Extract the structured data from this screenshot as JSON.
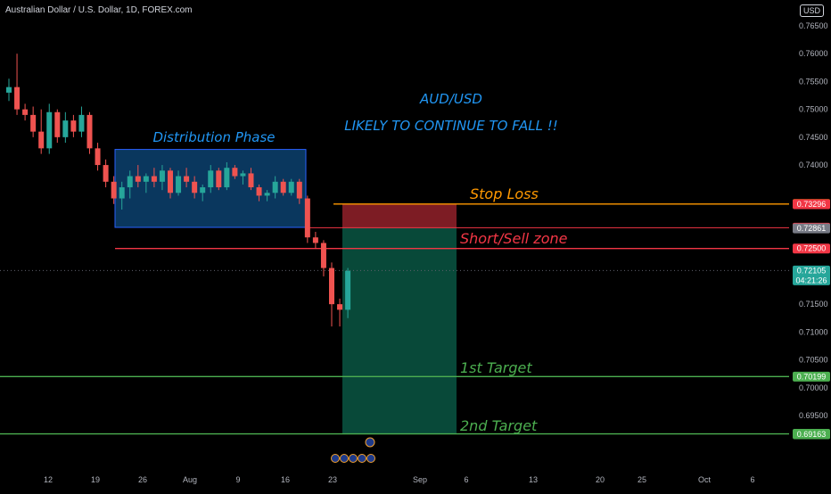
{
  "symbol": {
    "title": "Australian Dollar / U.S. Dollar, 1D, FOREX.com",
    "currency": "USD"
  },
  "colors": {
    "up": "#26a69a",
    "down": "#ef5350",
    "stop_line": "#ff9800",
    "sell_line": "#f23645",
    "target_line": "#4caf50",
    "headline": "#2196f3",
    "distribution_box": "#0d4a7e"
  },
  "annotations": {
    "headline_1": "AUD/USD",
    "headline_2": "LIKELY TO CONTINUE TO FALL !!",
    "distribution": "Distribution Phase",
    "stop_loss": "Stop Loss",
    "sell_zone": "Short/Sell zone",
    "target_1": "1st Target",
    "target_2": "2nd Target"
  },
  "chart_data": {
    "type": "candlestick",
    "title": "Australian Dollar / U.S. Dollar, 1D, FOREX.com",
    "ylim": [
      0.688,
      0.768
    ],
    "y_ticks": [
      0.765,
      0.76,
      0.755,
      0.75,
      0.745,
      0.74,
      0.715,
      0.71,
      0.705,
      0.7,
      0.695
    ],
    "x_ticks": [
      "12",
      "19",
      "26",
      "Aug",
      "9",
      "16",
      "23",
      "Sep",
      "6",
      "13",
      "20",
      "25",
      "Oct",
      "6"
    ],
    "grid": false,
    "candles": [
      {
        "o": 0.753,
        "h": 0.7555,
        "l": 0.7515,
        "c": 0.754
      },
      {
        "o": 0.754,
        "h": 0.76,
        "l": 0.749,
        "c": 0.75
      },
      {
        "o": 0.75,
        "h": 0.751,
        "l": 0.748,
        "c": 0.749
      },
      {
        "o": 0.749,
        "h": 0.7505,
        "l": 0.745,
        "c": 0.746
      },
      {
        "o": 0.746,
        "h": 0.75,
        "l": 0.742,
        "c": 0.743
      },
      {
        "o": 0.743,
        "h": 0.751,
        "l": 0.742,
        "c": 0.7495
      },
      {
        "o": 0.7495,
        "h": 0.75,
        "l": 0.744,
        "c": 0.745
      },
      {
        "o": 0.745,
        "h": 0.7495,
        "l": 0.744,
        "c": 0.748
      },
      {
        "o": 0.748,
        "h": 0.749,
        "l": 0.745,
        "c": 0.746
      },
      {
        "o": 0.746,
        "h": 0.7505,
        "l": 0.745,
        "c": 0.749
      },
      {
        "o": 0.749,
        "h": 0.7495,
        "l": 0.742,
        "c": 0.743
      },
      {
        "o": 0.743,
        "h": 0.744,
        "l": 0.739,
        "c": 0.74
      },
      {
        "o": 0.74,
        "h": 0.741,
        "l": 0.736,
        "c": 0.737
      },
      {
        "o": 0.737,
        "h": 0.738,
        "l": 0.733,
        "c": 0.734
      },
      {
        "o": 0.734,
        "h": 0.737,
        "l": 0.732,
        "c": 0.736
      },
      {
        "o": 0.736,
        "h": 0.739,
        "l": 0.734,
        "c": 0.738
      },
      {
        "o": 0.738,
        "h": 0.74,
        "l": 0.736,
        "c": 0.737
      },
      {
        "o": 0.737,
        "h": 0.7385,
        "l": 0.735,
        "c": 0.738
      },
      {
        "o": 0.738,
        "h": 0.7395,
        "l": 0.736,
        "c": 0.737
      },
      {
        "o": 0.737,
        "h": 0.74,
        "l": 0.7355,
        "c": 0.739
      },
      {
        "o": 0.739,
        "h": 0.7395,
        "l": 0.734,
        "c": 0.735
      },
      {
        "o": 0.735,
        "h": 0.739,
        "l": 0.7345,
        "c": 0.738
      },
      {
        "o": 0.738,
        "h": 0.7395,
        "l": 0.736,
        "c": 0.737
      },
      {
        "o": 0.737,
        "h": 0.738,
        "l": 0.734,
        "c": 0.735
      },
      {
        "o": 0.735,
        "h": 0.7365,
        "l": 0.7335,
        "c": 0.736
      },
      {
        "o": 0.736,
        "h": 0.74,
        "l": 0.735,
        "c": 0.739
      },
      {
        "o": 0.739,
        "h": 0.7395,
        "l": 0.7355,
        "c": 0.736
      },
      {
        "o": 0.736,
        "h": 0.7405,
        "l": 0.7355,
        "c": 0.7395
      },
      {
        "o": 0.7395,
        "h": 0.74,
        "l": 0.7375,
        "c": 0.738
      },
      {
        "o": 0.738,
        "h": 0.739,
        "l": 0.7365,
        "c": 0.7385
      },
      {
        "o": 0.7385,
        "h": 0.7395,
        "l": 0.7355,
        "c": 0.736
      },
      {
        "o": 0.736,
        "h": 0.7365,
        "l": 0.7335,
        "c": 0.7345
      },
      {
        "o": 0.7345,
        "h": 0.7355,
        "l": 0.7335,
        "c": 0.735
      },
      {
        "o": 0.735,
        "h": 0.738,
        "l": 0.734,
        "c": 0.737
      },
      {
        "o": 0.737,
        "h": 0.7375,
        "l": 0.7345,
        "c": 0.735
      },
      {
        "o": 0.735,
        "h": 0.7375,
        "l": 0.7345,
        "c": 0.737
      },
      {
        "o": 0.737,
        "h": 0.7375,
        "l": 0.733,
        "c": 0.734
      },
      {
        "o": 0.734,
        "h": 0.7345,
        "l": 0.726,
        "c": 0.727
      },
      {
        "o": 0.727,
        "h": 0.728,
        "l": 0.725,
        "c": 0.726
      },
      {
        "o": 0.726,
        "h": 0.7265,
        "l": 0.72,
        "c": 0.7215
      },
      {
        "o": 0.7215,
        "h": 0.7225,
        "l": 0.711,
        "c": 0.715
      },
      {
        "o": 0.715,
        "h": 0.716,
        "l": 0.711,
        "c": 0.714
      },
      {
        "o": 0.714,
        "h": 0.7215,
        "l": 0.7125,
        "c": 0.721
      }
    ],
    "levels": [
      {
        "name": "Stop Loss",
        "value": 0.733,
        "style": "stop"
      },
      {
        "name": "Short/Sell zone",
        "value": 0.725,
        "style": "sell"
      },
      {
        "name": "1st Target",
        "value": 0.70199,
        "style": "target"
      },
      {
        "name": "2nd Target",
        "value": 0.69171,
        "style": "target"
      }
    ],
    "price_tags": [
      {
        "value": "0.73300",
        "price": 0.733,
        "color": "#ff9800"
      },
      {
        "value": "0.73296",
        "price": 0.73296,
        "color": "#f23645"
      },
      {
        "value": "0.72874",
        "price": 0.72874,
        "color": "#f23645"
      },
      {
        "value": "0.72861",
        "price": 0.72861,
        "color": "#787b86"
      },
      {
        "value": "0.72500",
        "price": 0.725,
        "color": "#f23645"
      },
      {
        "value": "0.72105",
        "price": 0.72105,
        "color": "#26a69a",
        "sub": "04:21:26"
      },
      {
        "value": "0.70199",
        "price": 0.70199,
        "color": "#4caf50"
      },
      {
        "value": "0.69171",
        "price": 0.69171,
        "color": "#4caf50"
      },
      {
        "value": "0.69163",
        "price": 0.69163,
        "color": "#4caf50"
      }
    ]
  }
}
